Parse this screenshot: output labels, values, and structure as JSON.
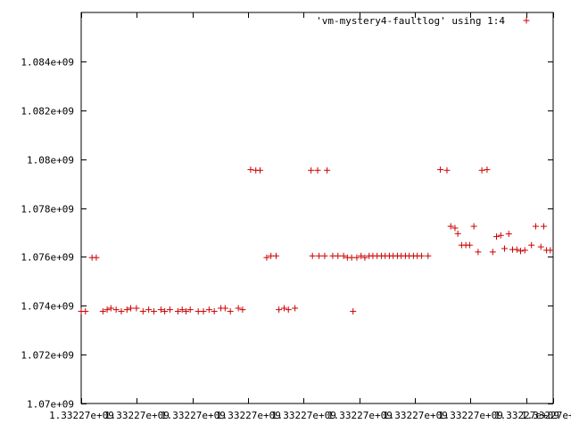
{
  "chart_data": {
    "type": "scatter",
    "title": "",
    "xlabel": "",
    "ylabel": "",
    "xlim": [
      0,
      1
    ],
    "ylim": [
      1070000000,
      1086000000
    ],
    "grid": false,
    "legend_position": "top-right",
    "series": [
      {
        "name": "'vm-mystery4-faultlog' using 1:4",
        "color": "#cc0000",
        "marker": "+",
        "points": [
          [
            0.0,
            1073770000
          ],
          [
            0.009,
            1073770000
          ],
          [
            0.023,
            1075970000
          ],
          [
            0.032,
            1075970000
          ],
          [
            0.046,
            1073770000
          ],
          [
            0.055,
            1073840000
          ],
          [
            0.063,
            1073900000
          ],
          [
            0.074,
            1073840000
          ],
          [
            0.085,
            1073770000
          ],
          [
            0.097,
            1073840000
          ],
          [
            0.105,
            1073900000
          ],
          [
            0.117,
            1073900000
          ],
          [
            0.131,
            1073770000
          ],
          [
            0.143,
            1073840000
          ],
          [
            0.154,
            1073770000
          ],
          [
            0.169,
            1073840000
          ],
          [
            0.177,
            1073770000
          ],
          [
            0.188,
            1073840000
          ],
          [
            0.205,
            1073770000
          ],
          [
            0.214,
            1073840000
          ],
          [
            0.222,
            1073770000
          ],
          [
            0.231,
            1073840000
          ],
          [
            0.248,
            1073770000
          ],
          [
            0.259,
            1073770000
          ],
          [
            0.271,
            1073840000
          ],
          [
            0.282,
            1073770000
          ],
          [
            0.296,
            1073900000
          ],
          [
            0.305,
            1073900000
          ],
          [
            0.316,
            1073770000
          ],
          [
            0.333,
            1073900000
          ],
          [
            0.342,
            1073840000
          ],
          [
            0.359,
            1079570000
          ],
          [
            0.37,
            1079540000
          ],
          [
            0.379,
            1079540000
          ],
          [
            0.393,
            1075970000
          ],
          [
            0.402,
            1076040000
          ],
          [
            0.413,
            1076040000
          ],
          [
            0.419,
            1073840000
          ],
          [
            0.43,
            1073900000
          ],
          [
            0.439,
            1073840000
          ],
          [
            0.453,
            1073900000
          ],
          [
            0.487,
            1079540000
          ],
          [
            0.501,
            1079540000
          ],
          [
            0.49,
            1076040000
          ],
          [
            0.504,
            1076040000
          ],
          [
            0.516,
            1076040000
          ],
          [
            0.521,
            1079540000
          ],
          [
            0.533,
            1076040000
          ],
          [
            0.544,
            1076040000
          ],
          [
            0.556,
            1076040000
          ],
          [
            0.564,
            1075970000
          ],
          [
            0.573,
            1075970000
          ],
          [
            0.576,
            1073770000
          ],
          [
            0.584,
            1075970000
          ],
          [
            0.593,
            1076040000
          ],
          [
            0.601,
            1075970000
          ],
          [
            0.61,
            1076040000
          ],
          [
            0.618,
            1076040000
          ],
          [
            0.627,
            1076040000
          ],
          [
            0.636,
            1076040000
          ],
          [
            0.644,
            1076040000
          ],
          [
            0.653,
            1076040000
          ],
          [
            0.661,
            1076040000
          ],
          [
            0.67,
            1076040000
          ],
          [
            0.678,
            1076040000
          ],
          [
            0.687,
            1076040000
          ],
          [
            0.695,
            1076040000
          ],
          [
            0.704,
            1076040000
          ],
          [
            0.712,
            1076040000
          ],
          [
            0.721,
            1076040000
          ],
          [
            0.735,
            1076040000
          ],
          [
            0.761,
            1079570000
          ],
          [
            0.775,
            1079540000
          ],
          [
            0.783,
            1077250000
          ],
          [
            0.792,
            1077180000
          ],
          [
            0.798,
            1076950000
          ],
          [
            0.806,
            1076480000
          ],
          [
            0.815,
            1076480000
          ],
          [
            0.823,
            1076480000
          ],
          [
            0.832,
            1077250000
          ],
          [
            0.841,
            1076200000
          ],
          [
            0.849,
            1079540000
          ],
          [
            0.86,
            1079570000
          ],
          [
            0.872,
            1076200000
          ],
          [
            0.88,
            1076830000
          ],
          [
            0.889,
            1076880000
          ],
          [
            0.897,
            1076340000
          ],
          [
            0.906,
            1076940000
          ],
          [
            0.914,
            1076300000
          ],
          [
            0.923,
            1076300000
          ],
          [
            0.931,
            1076240000
          ],
          [
            0.94,
            1076270000
          ],
          [
            0.954,
            1076480000
          ],
          [
            0.963,
            1077250000
          ],
          [
            0.974,
            1076410000
          ],
          [
            0.98,
            1077250000
          ],
          [
            0.986,
            1076270000
          ],
          [
            0.994,
            1076270000
          ],
          [
            1.003,
            1076270000
          ],
          [
            1.011,
            1076410000
          ],
          [
            1.02,
            1076410000
          ],
          [
            1.029,
            1076410000
          ],
          [
            1.037,
            1076410000
          ],
          [
            1.046,
            1076410000
          ]
        ]
      }
    ],
    "y_ticks": [
      {
        "value": 1070000000,
        "label": "1.07e+09"
      },
      {
        "value": 1072000000,
        "label": "1.072e+09"
      },
      {
        "value": 1074000000,
        "label": "1.074e+09"
      },
      {
        "value": 1076000000,
        "label": "1.076e+09"
      },
      {
        "value": 1078000000,
        "label": "1.078e+09"
      },
      {
        "value": 1080000000,
        "label": "1.08e+09"
      },
      {
        "value": 1082000000,
        "label": "1.082e+09"
      },
      {
        "value": 1084000000,
        "label": "1.084e+09"
      }
    ],
    "x_ticks": [
      {
        "value": 0.0,
        "label": "1.33227e+09"
      },
      {
        "value": 0.118,
        "label": "1.33227e+09"
      },
      {
        "value": 0.236,
        "label": "1.33227e+09"
      },
      {
        "value": 0.354,
        "label": "1.33227e+09"
      },
      {
        "value": 0.471,
        "label": "1.33227e+09"
      },
      {
        "value": 0.589,
        "label": "1.33227e+09"
      },
      {
        "value": 0.707,
        "label": "1.33227e+09"
      },
      {
        "value": 0.825,
        "label": "1.33227e+09"
      },
      {
        "value": 0.943,
        "label": "1.33227e+09"
      },
      {
        "value": 1.0,
        "label": "1.33227e+09"
      }
    ]
  }
}
